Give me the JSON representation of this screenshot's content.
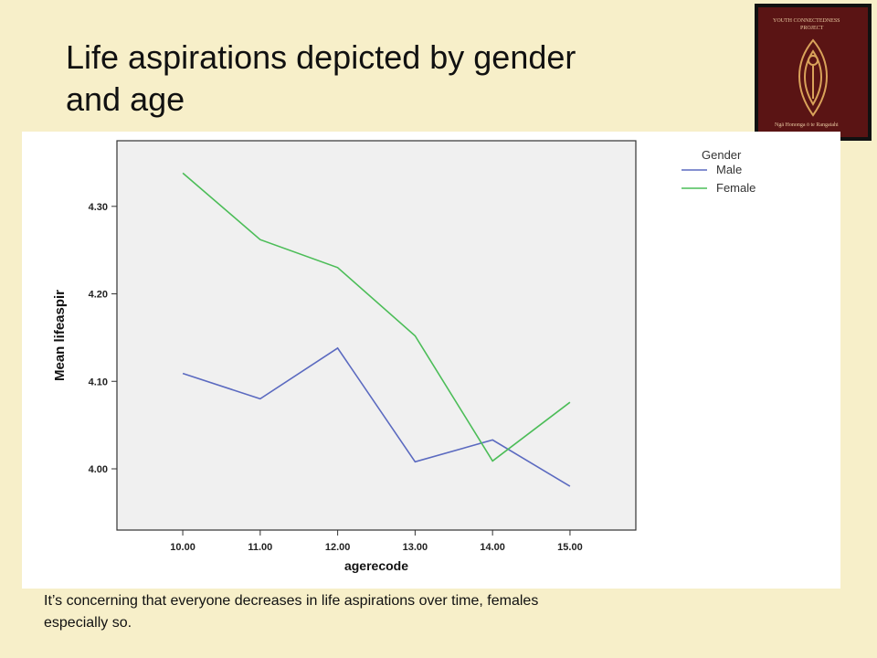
{
  "slide": {
    "title_line1": "Life aspirations depicted by gender",
    "title_line2": "and age",
    "caption_line1": "It’s concerning that everyone decreases in life aspirations over time, females",
    "caption_line2": "especially so.",
    "logo": {
      "line1": "YOUTH   CONNECTEDNESS",
      "line2": "PROJECT",
      "line3": "Ngā Hononga ō te Rangatahi"
    }
  },
  "colors": {
    "background": "#f7efc9",
    "plot_bg": "#f0f0f0",
    "male": "#5b6ac0",
    "female": "#4cbd58"
  },
  "chart_data": {
    "type": "line",
    "title": "",
    "xlabel": "agerecode",
    "ylabel": "Mean lifeaspir",
    "x": [
      10,
      11,
      12,
      13,
      14,
      15
    ],
    "x_tick_labels": [
      "10.00",
      "11.00",
      "12.00",
      "13.00",
      "14.00",
      "15.00"
    ],
    "y_ticks": [
      4.0,
      4.1,
      4.2,
      4.3
    ],
    "y_tick_labels": [
      "4.00",
      "4.10",
      "4.20",
      "4.30"
    ],
    "ylim": [
      3.93,
      4.375
    ],
    "xlim": [
      9.15,
      15.85
    ],
    "grid": false,
    "legend": {
      "title": "Gender",
      "placement": "right"
    },
    "series": [
      {
        "name": "Male",
        "values": [
          4.109,
          4.08,
          4.138,
          4.008,
          4.033,
          3.98
        ],
        "color": "#5b6ac0"
      },
      {
        "name": "Female",
        "values": [
          4.338,
          4.262,
          4.23,
          4.152,
          4.009,
          4.076
        ],
        "color": "#4cbd58"
      }
    ]
  }
}
